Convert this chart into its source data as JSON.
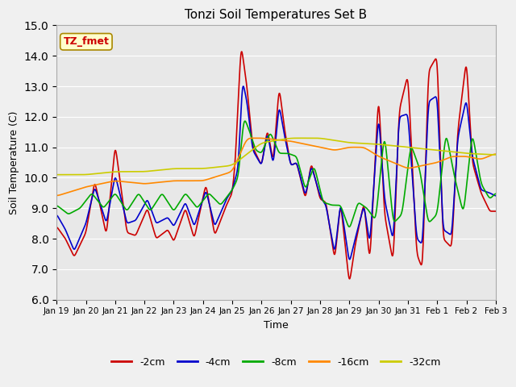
{
  "title": "Tonzi Soil Temperatures Set B",
  "xlabel": "Time",
  "ylabel": "Soil Temperature (C)",
  "ylim": [
    6.0,
    15.0
  ],
  "yticks": [
    6.0,
    7.0,
    8.0,
    9.0,
    10.0,
    11.0,
    12.0,
    13.0,
    14.0,
    15.0
  ],
  "xtick_labels": [
    "Jan 19",
    "Jan 20",
    "Jan 21",
    "Jan 22",
    "Jan 23",
    "Jan 24",
    "Jan 25",
    "Jan 26",
    "Jan 27",
    "Jan 28",
    "Jan 29",
    "Jan 30",
    "Jan 31",
    "Feb 1",
    "Feb 2",
    "Feb 3"
  ],
  "legend_labels": [
    "-2cm",
    "-4cm",
    "-8cm",
    "-16cm",
    "-32cm"
  ],
  "legend_colors": [
    "#cc0000",
    "#0000cc",
    "#00aa00",
    "#ff8800",
    "#cccc00"
  ],
  "annotation_text": "TZ_fmet",
  "annotation_fgcolor": "#cc0000",
  "annotation_bgcolor": "#ffffcc",
  "plot_bg_color": "#e8e8e8",
  "fig_bg_color": "#f0f0f0",
  "grid_color": "#ffffff"
}
